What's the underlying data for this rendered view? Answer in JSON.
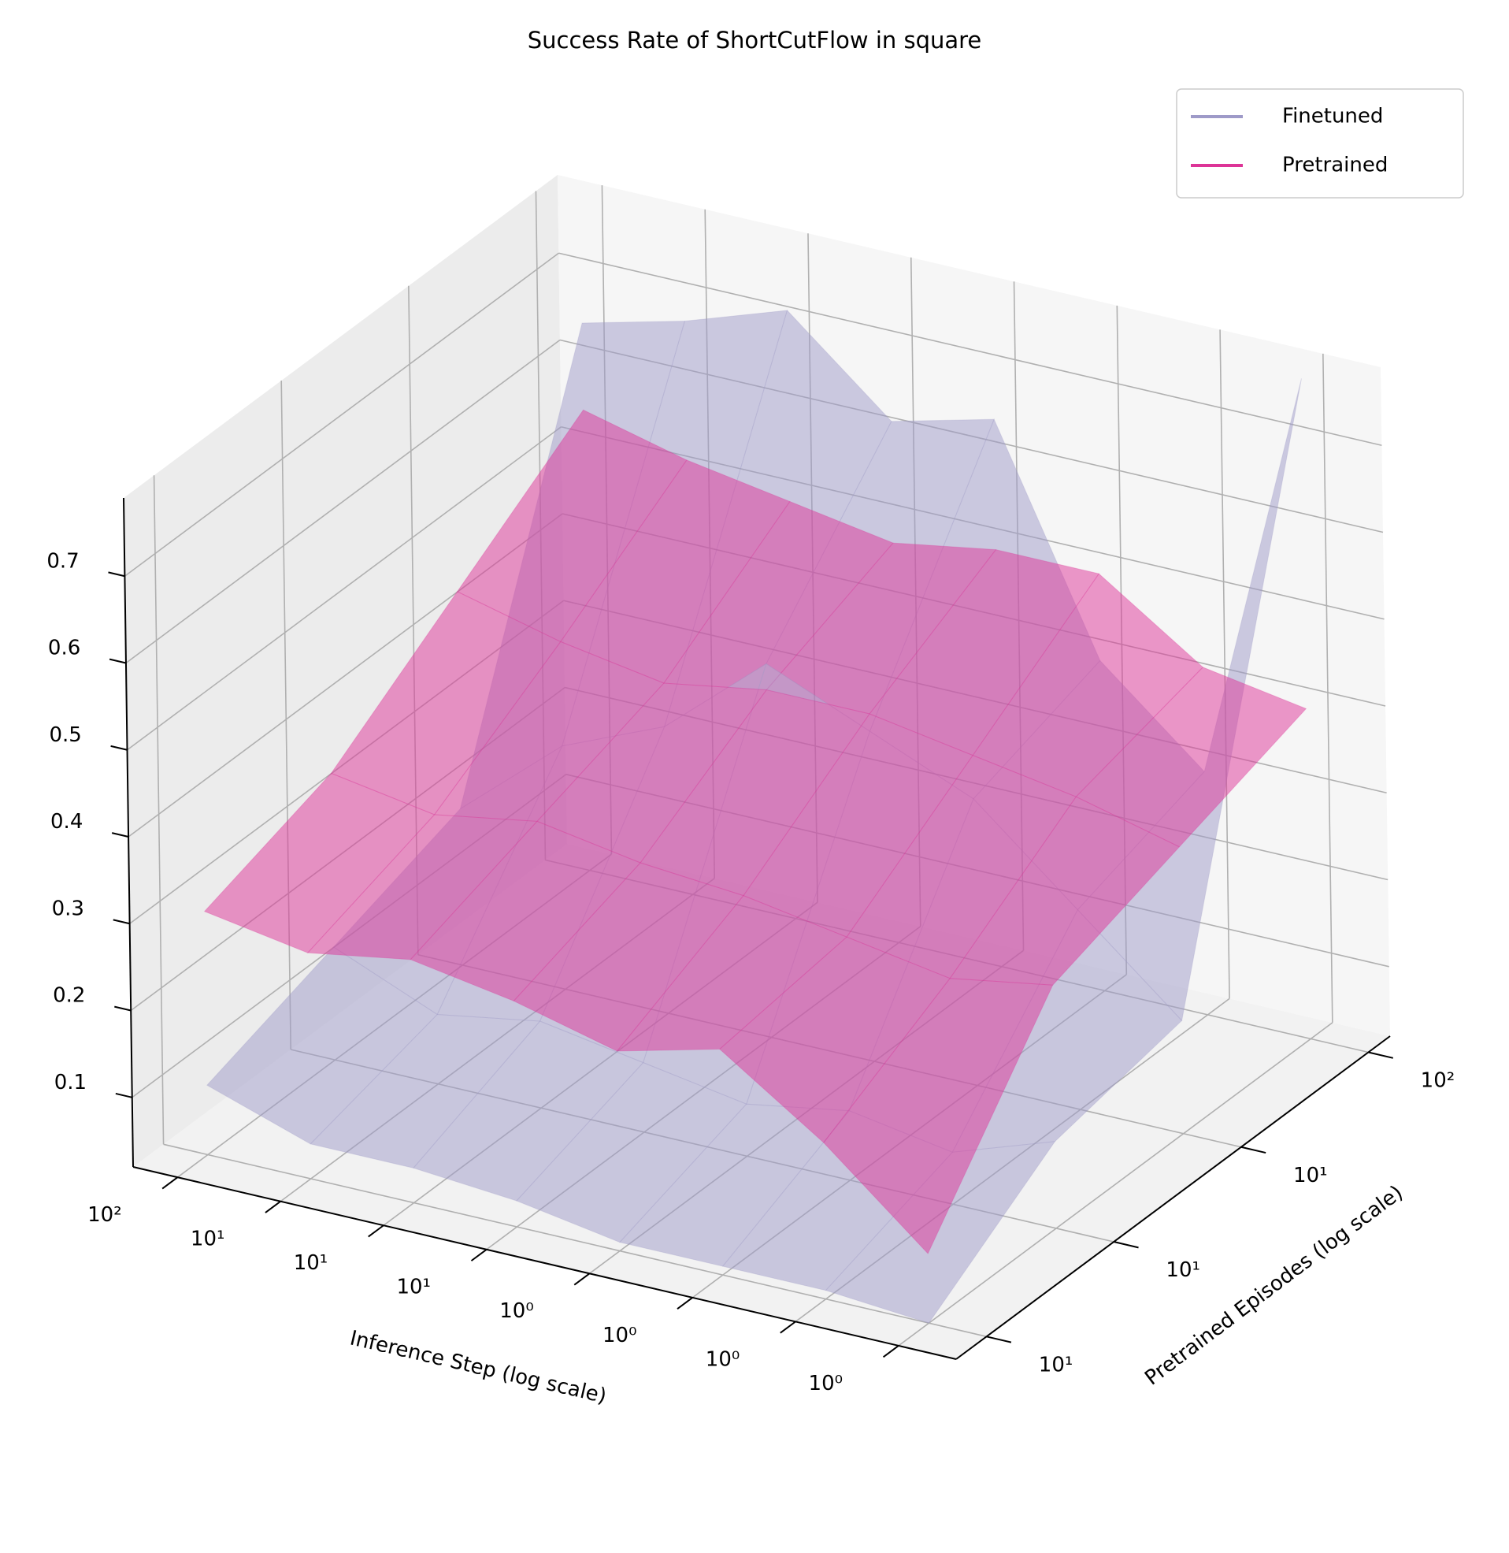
{
  "chart_data": {
    "type": "surface3d",
    "title": "Success Rate of ShortCutFlow in square",
    "x_label": "Inference Step (log scale)",
    "y_label": "Pretrained Episodes (log scale)",
    "x_categories": [
      "10²",
      "10¹",
      "10¹",
      "10¹",
      "10⁰",
      "10⁰",
      "10⁰",
      "10⁰"
    ],
    "y_categories": [
      "10¹",
      "10¹",
      "10¹",
      "10²"
    ],
    "zlim": [
      0.02,
      0.79
    ],
    "zticks": [
      0.1,
      0.2,
      0.3,
      0.4,
      0.5,
      0.6,
      0.7
    ],
    "grid": true,
    "legend": "upper right",
    "series": [
      {
        "name": "Finetuned",
        "color": "#9e9ac8",
        "values": [
          [
            0.1,
            0.06,
            0.06,
            0.05,
            0.03,
            0.03,
            0.03,
            0.02
          ],
          [
            0.15,
            0.1,
            0.12,
            0.1,
            0.08,
            0.1,
            0.08,
            0.12
          ],
          [
            0.2,
            0.3,
            0.35,
            0.45,
            0.4,
            0.35,
            0.25,
            0.15
          ],
          [
            0.65,
            0.68,
            0.72,
            0.62,
            0.65,
            0.4,
            0.3,
            0.78
          ]
        ]
      },
      {
        "name": "Pretrained",
        "color": "#dd3497",
        "values": [
          [
            0.3,
            0.28,
            0.3,
            0.28,
            0.25,
            0.28,
            0.2,
            0.1
          ],
          [
            0.35,
            0.33,
            0.35,
            0.33,
            0.32,
            0.3,
            0.28,
            0.3
          ],
          [
            0.45,
            0.42,
            0.4,
            0.42,
            0.42,
            0.4,
            0.38,
            0.35
          ],
          [
            0.55,
            0.52,
            0.5,
            0.48,
            0.5,
            0.5,
            0.42,
            0.4
          ]
        ]
      }
    ]
  }
}
